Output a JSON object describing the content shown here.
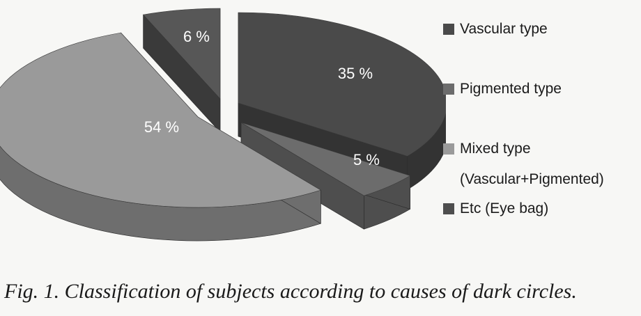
{
  "chart_data": {
    "type": "pie",
    "three_d": true,
    "exploded": true,
    "slices": [
      {
        "name": "Vascular type",
        "value": 35,
        "label": "35 %",
        "color": "#4a4a4a",
        "side": "#333333"
      },
      {
        "name": "Pigmented type",
        "value": 5,
        "label": "5 %",
        "color": "#6c6c6c",
        "side": "#4e4e4e"
      },
      {
        "name": "Mixed type (Vascular+Pigmented)",
        "value": 54,
        "label": "54 %",
        "color": "#9a9a9a",
        "side": "#6e6e6e"
      },
      {
        "name": "Etc (Eye bag)",
        "value": 6,
        "label": "6 %",
        "color": "#575757",
        "side": "#3a3a3a"
      }
    ],
    "legend": {
      "placement": "right",
      "items": [
        {
          "line1": "Vascular type",
          "line2": "",
          "color": "#4a4a4a"
        },
        {
          "line1": "Pigmented type",
          "line2": "",
          "color": "#6c6c6c"
        },
        {
          "line1": "Mixed type",
          "line2": "(Vascular+Pigmented)",
          "color": "#9a9a9a"
        },
        {
          "line1": "Etc (Eye bag)",
          "line2": "",
          "color": "#4e4e4e"
        }
      ]
    }
  },
  "caption": "Fig. 1.  Classification of subjects according to causes of dark circles."
}
